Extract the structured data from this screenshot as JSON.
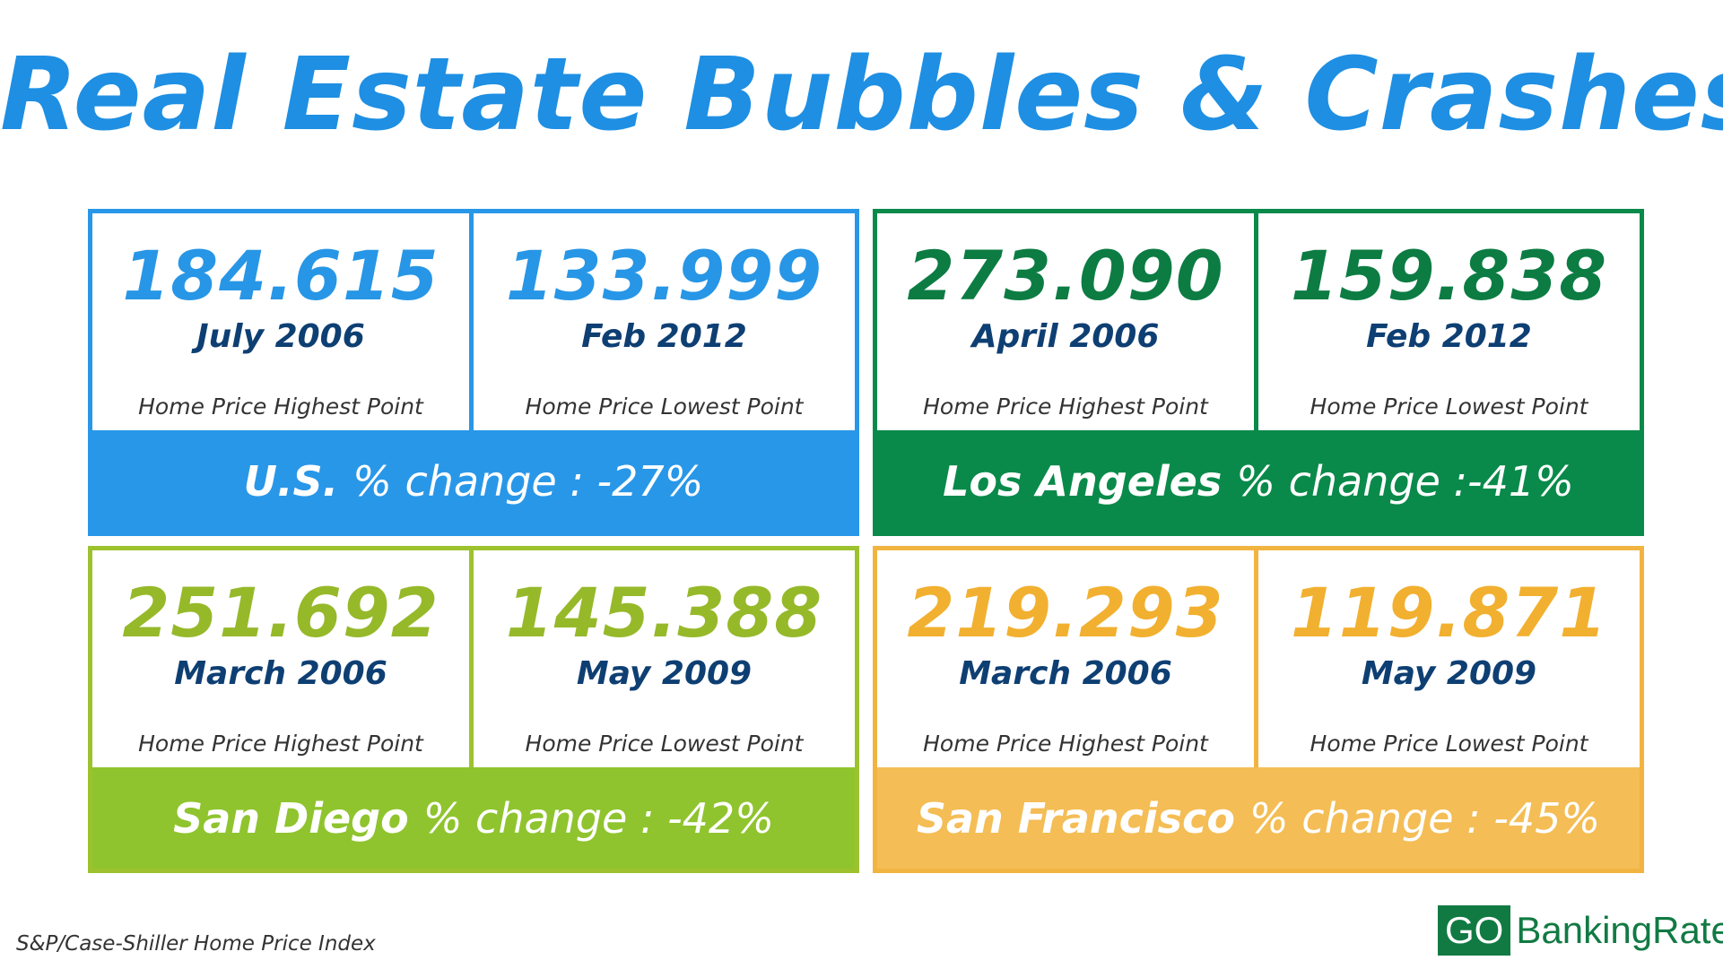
{
  "title": "Real Estate Bubbles & Crashes",
  "cards": [
    {
      "city": "U.S.",
      "change": "% change : -27%",
      "high": {
        "value": "184.615",
        "date": "July 2006",
        "label": "Home Price Highest Point"
      },
      "low": {
        "value": "133.999",
        "date": "Feb 2012",
        "label": "Home Price Lowest Point"
      },
      "color": "#2997e8"
    },
    {
      "city": "Los Angeles",
      "change": "% change :-41%",
      "high": {
        "value": "273.090",
        "date": "April 2006",
        "label": "Home Price Highest Point"
      },
      "low": {
        "value": "159.838",
        "date": "Feb 2012",
        "label": "Home Price Lowest Point"
      },
      "color": "#0a8a4a"
    },
    {
      "city": "San Diego",
      "change": "% change : -42%",
      "high": {
        "value": "251.692",
        "date": "March 2006",
        "label": "Home Price Highest Point"
      },
      "low": {
        "value": "145.388",
        "date": "May 2009",
        "label": "Home Price Lowest Point"
      },
      "color": "#8fc42e"
    },
    {
      "city": "San Francisco",
      "change": "% change : -45%",
      "high": {
        "value": "219.293",
        "date": "March 2006",
        "label": "Home Price Highest Point"
      },
      "low": {
        "value": "119.871",
        "date": "May 2009",
        "label": "Home Price Lowest Point"
      },
      "color": "#f4bd55"
    }
  ],
  "source": "S&P/Case-Shiller Home Price Index",
  "logo": {
    "go": "GO",
    "rest": "BankingRates",
    "color": "#117a43"
  }
}
